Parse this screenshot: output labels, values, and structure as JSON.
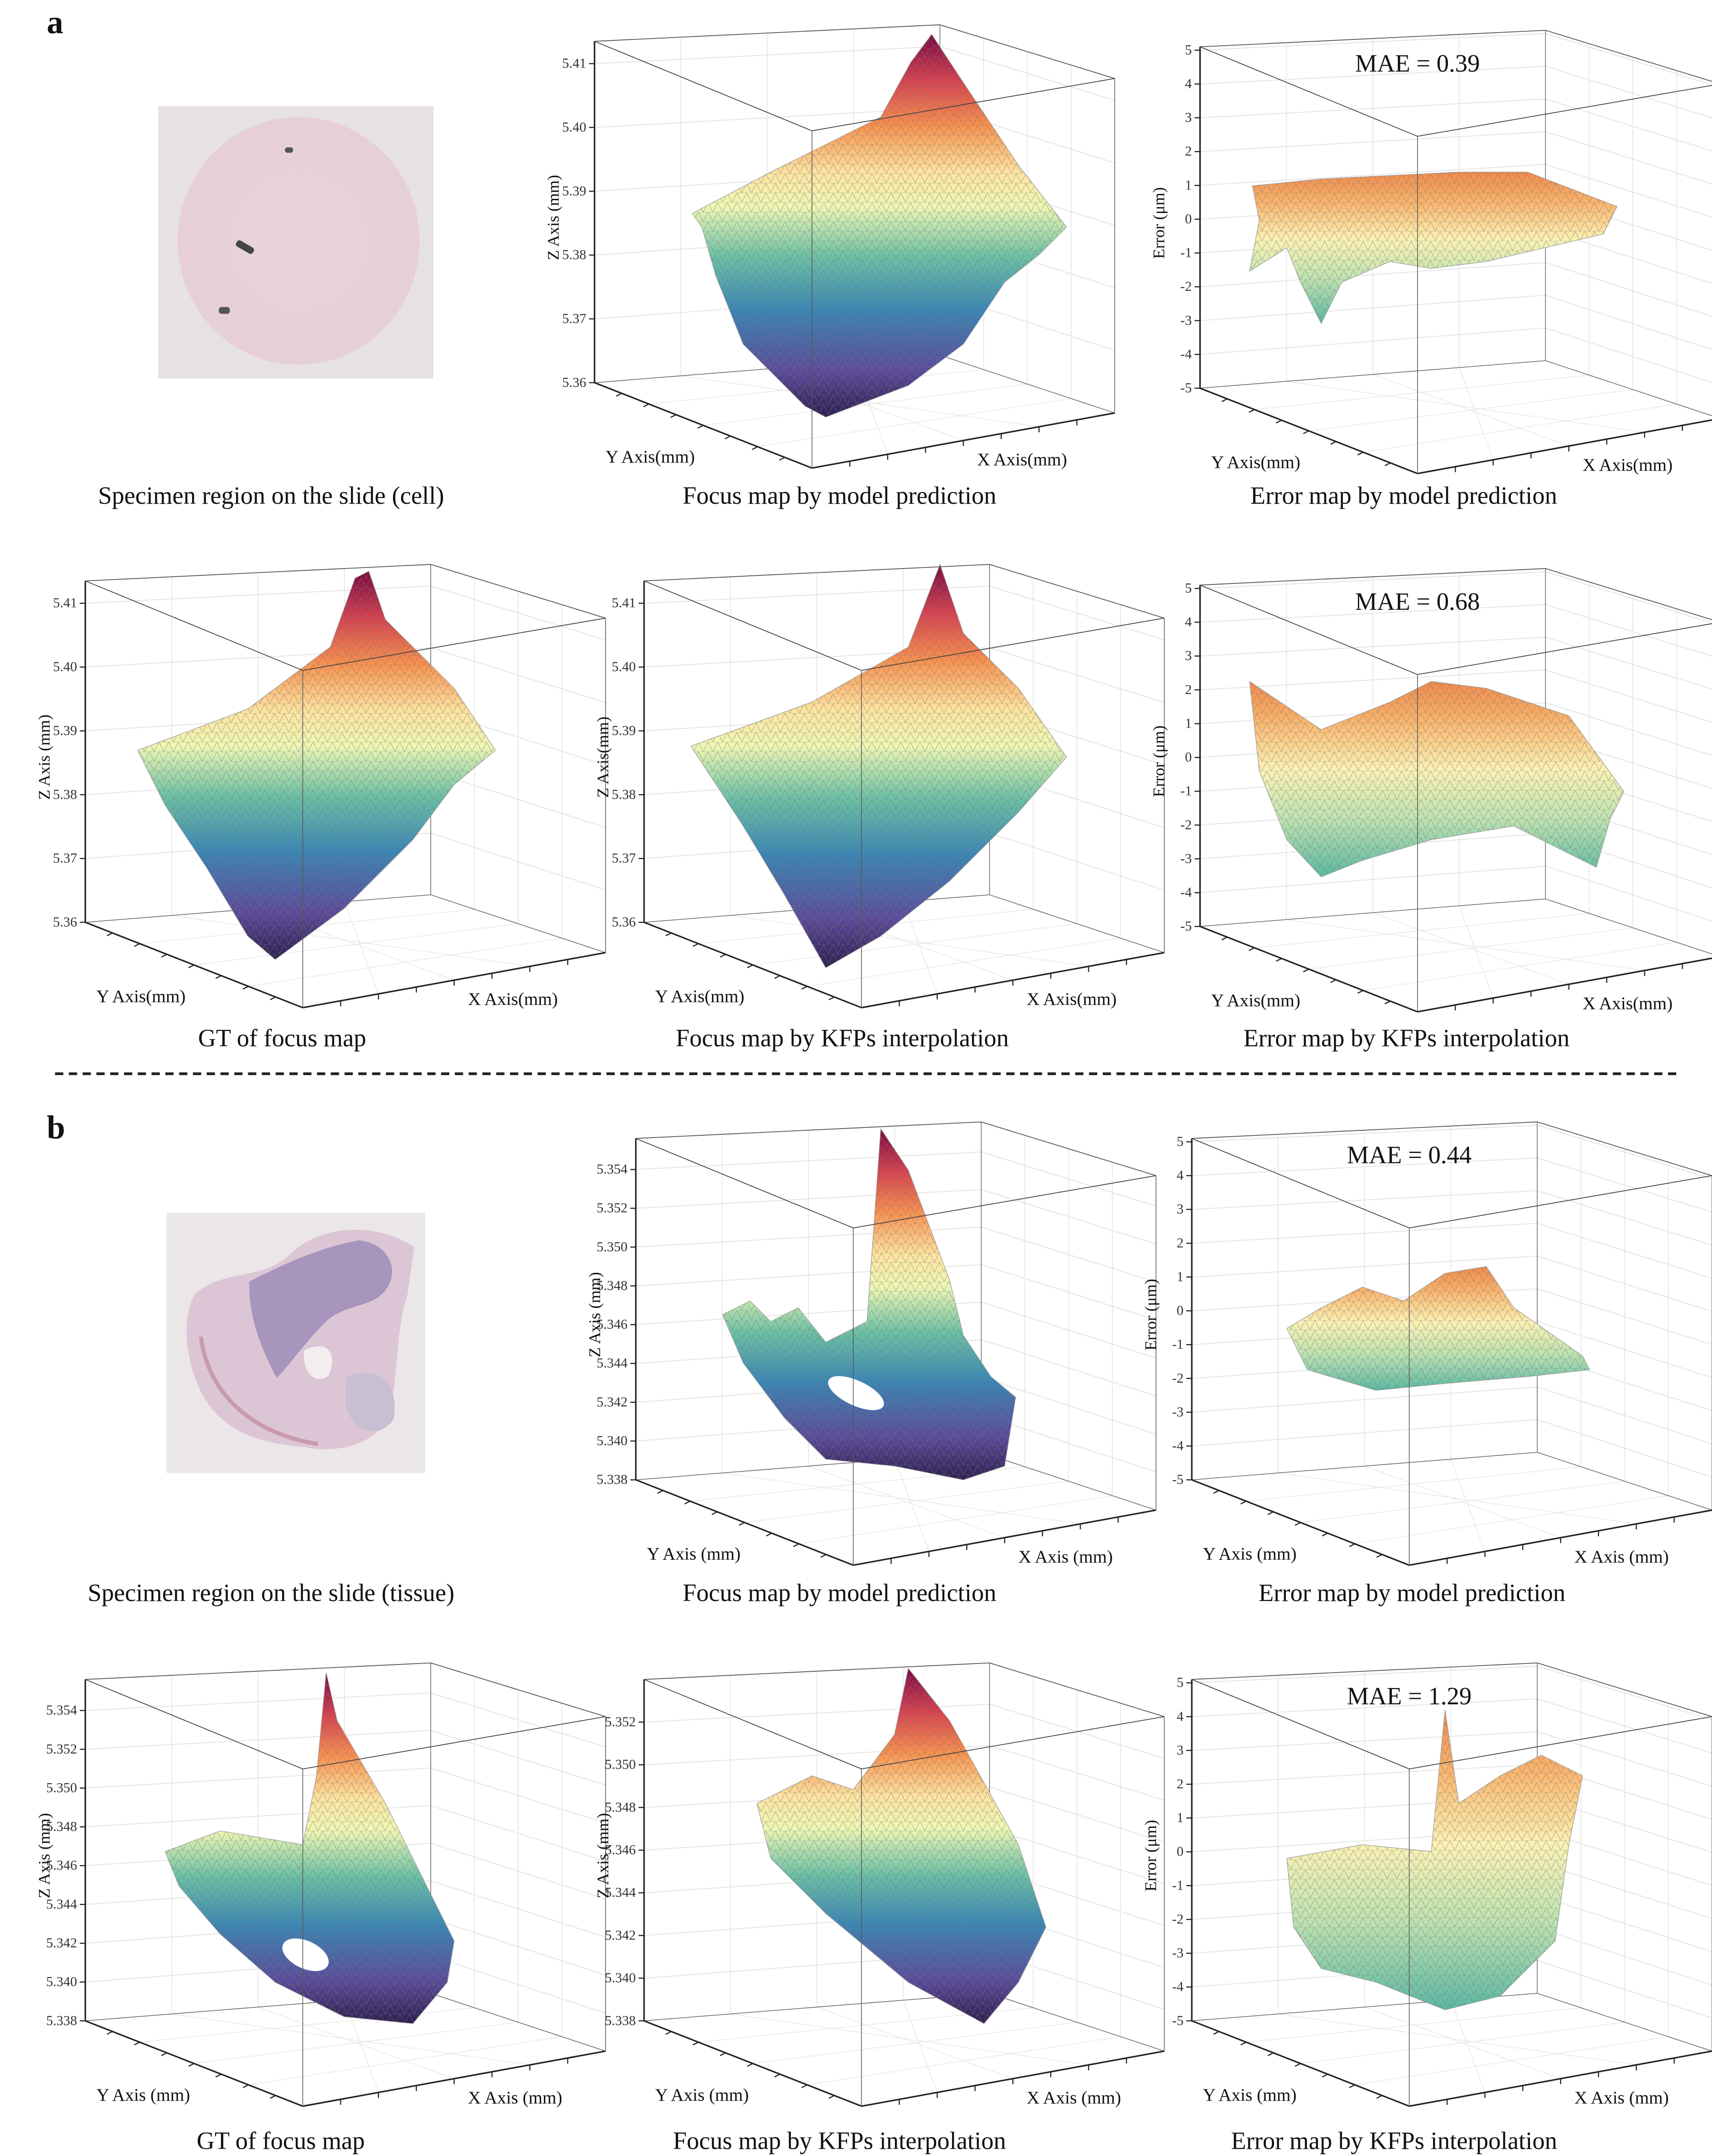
{
  "figure": {
    "panel_labels": [
      "a",
      "b"
    ]
  },
  "specimens": [
    {
      "caption": "Specimen region on the slide (cell)",
      "kind": "cell"
    },
    {
      "caption": "Specimen region on the slide (tissue)",
      "kind": "tissue"
    }
  ],
  "colors": {
    "colormap": "Spectral (reversed)",
    "low": "#3b2a5e",
    "mid_low": "#3a86b5",
    "mid": "#7cc8a4",
    "center": "#f7f4b3",
    "mid_high": "#f79a55",
    "high": "#8e0b45"
  },
  "chart_data": [
    {
      "type": "surface3d",
      "caption": "Focus map by model prediction",
      "zlabel": "Z Axis (mm)",
      "xlabel": "X Axis(mm)",
      "ylabel": "Y Axis(mm)",
      "zlim": [
        5.36,
        5.4135
      ],
      "zticks": [
        "5.36",
        "5.37",
        "5.38",
        "5.39",
        "5.40",
        "5.41"
      ],
      "grid": true
    },
    {
      "type": "surface3d",
      "caption": "Error map by model prediction",
      "zlabel": "Error (μm)",
      "xlabel": "X Axis(mm)",
      "ylabel": "Y Axis(mm)",
      "zlim": [
        -5,
        5.1
      ],
      "zticks": [
        "-5",
        "-4",
        "-3",
        "-2",
        "-1",
        "0",
        "1",
        "2",
        "3",
        "4",
        "5"
      ],
      "mae": "MAE = 0.39",
      "grid": true
    },
    {
      "type": "surface3d",
      "caption": "GT of focus map",
      "zlabel": "Z Axis (mm)",
      "xlabel": "X Axis(mm)",
      "ylabel": "Y Axis(mm)",
      "zlim": [
        5.36,
        5.4135
      ],
      "zticks": [
        "5.36",
        "5.37",
        "5.38",
        "5.39",
        "5.40",
        "5.41"
      ],
      "grid": true
    },
    {
      "type": "surface3d",
      "caption": "Focus map by KFPs interpolation",
      "zlabel": "Z Axis(mm)",
      "xlabel": "X Axis(mm)",
      "ylabel": "Y Axis(mm)",
      "zlim": [
        5.36,
        5.4135
      ],
      "zticks": [
        "5.36",
        "5.37",
        "5.38",
        "5.39",
        "5.40",
        "5.41"
      ],
      "grid": true
    },
    {
      "type": "surface3d",
      "caption": "Error map by KFPs interpolation",
      "zlabel": "Error (μm)",
      "xlabel": "X Axis(mm)",
      "ylabel": "Y Axis(mm)",
      "zlim": [
        -5,
        5.1
      ],
      "zticks": [
        "-5",
        "-4",
        "-3",
        "-2",
        "-1",
        "0",
        "1",
        "2",
        "3",
        "4",
        "5"
      ],
      "mae": "MAE = 0.68",
      "grid": true
    },
    {
      "type": "surface3d",
      "caption": "Focus map by model prediction",
      "zlabel": "Z Axis (mm)",
      "xlabel": "X Axis (mm)",
      "ylabel": "Y Axis (mm)",
      "zlim": [
        5.338,
        5.3556
      ],
      "zticks": [
        "5.338",
        "5.340",
        "5.342",
        "5.344",
        "5.346",
        "5.348",
        "5.350",
        "5.352",
        "5.354"
      ],
      "grid": true
    },
    {
      "type": "surface3d",
      "caption": "Error map by model prediction",
      "zlabel": "Error (μm)",
      "xlabel": "X Axis (mm)",
      "ylabel": "Y Axis (mm)",
      "zlim": [
        -5,
        5.1
      ],
      "zticks": [
        "-5",
        "-4",
        "-3",
        "-2",
        "-1",
        "0",
        "1",
        "2",
        "3",
        "4",
        "5"
      ],
      "mae": "MAE = 0.44",
      "grid": true
    },
    {
      "type": "surface3d",
      "caption": "GT of focus map",
      "zlabel": "Z Axis (mm)",
      "xlabel": "X Axis (mm)",
      "ylabel": "Y Axis (mm)",
      "zlim": [
        5.338,
        5.3556
      ],
      "zticks": [
        "5.338",
        "5.340",
        "5.342",
        "5.344",
        "5.346",
        "5.348",
        "5.350",
        "5.352",
        "5.354"
      ],
      "grid": true
    },
    {
      "type": "surface3d",
      "caption": "Focus map by KFPs interpolation",
      "zlabel": "Z Axis (mm)",
      "xlabel": "X Axis (mm)",
      "ylabel": "Y Axis (mm)",
      "zlim": [
        5.338,
        5.354
      ],
      "zticks": [
        "5.338",
        "5.340",
        "5.342",
        "5.344",
        "5.346",
        "5.348",
        "5.350",
        "5.352"
      ],
      "grid": true
    },
    {
      "type": "surface3d",
      "caption": "Error map by KFPs interpolation",
      "zlabel": "Error (μm)",
      "xlabel": "X Axis (mm)",
      "ylabel": "Y Axis (mm)",
      "zlim": [
        -5,
        5.1
      ],
      "zticks": [
        "-5",
        "-4",
        "-3",
        "-2",
        "-1",
        "0",
        "1",
        "2",
        "3",
        "4",
        "5"
      ],
      "mae": "MAE = 1.29",
      "grid": true
    }
  ]
}
